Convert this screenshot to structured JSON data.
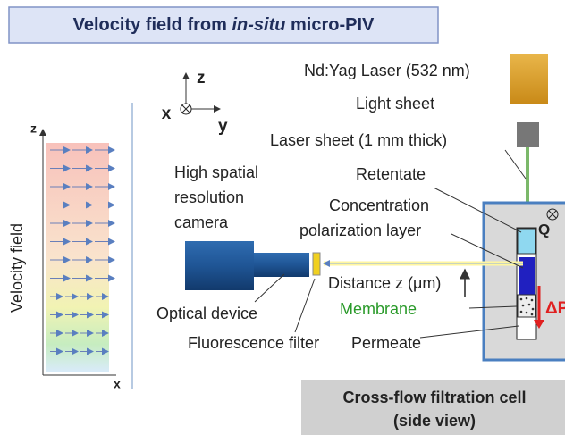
{
  "title": {
    "parts": [
      "Velocity field from ",
      "in-situ",
      " micro-PIV"
    ]
  },
  "coordinate_axes": {
    "z": "z",
    "x": "x",
    "y": "y"
  },
  "velocity_plot": {
    "z_axis": "z",
    "x_axis": "x",
    "label": "Velocity field"
  },
  "labels": {
    "laser": "Nd:Yag Laser (532 nm)",
    "light_sheet": "Light sheet",
    "laser_sheet": "Laser sheet (1 mm thick)",
    "retentate": "Retentate",
    "concentration_layer": [
      "Concentration",
      "polarization layer"
    ],
    "camera": [
      "High spatial",
      "resolution",
      "camera"
    ],
    "distance": "Distance z (μm)",
    "membrane": "Membrane",
    "optical_device": "Optical device",
    "fluorescence_filter": "Fluorescence filter",
    "permeate": "Permeate",
    "flow": "Q",
    "pressure": "ΔP"
  },
  "cell_caption": [
    "Cross-flow filtration cell",
    "(side view)"
  ]
}
